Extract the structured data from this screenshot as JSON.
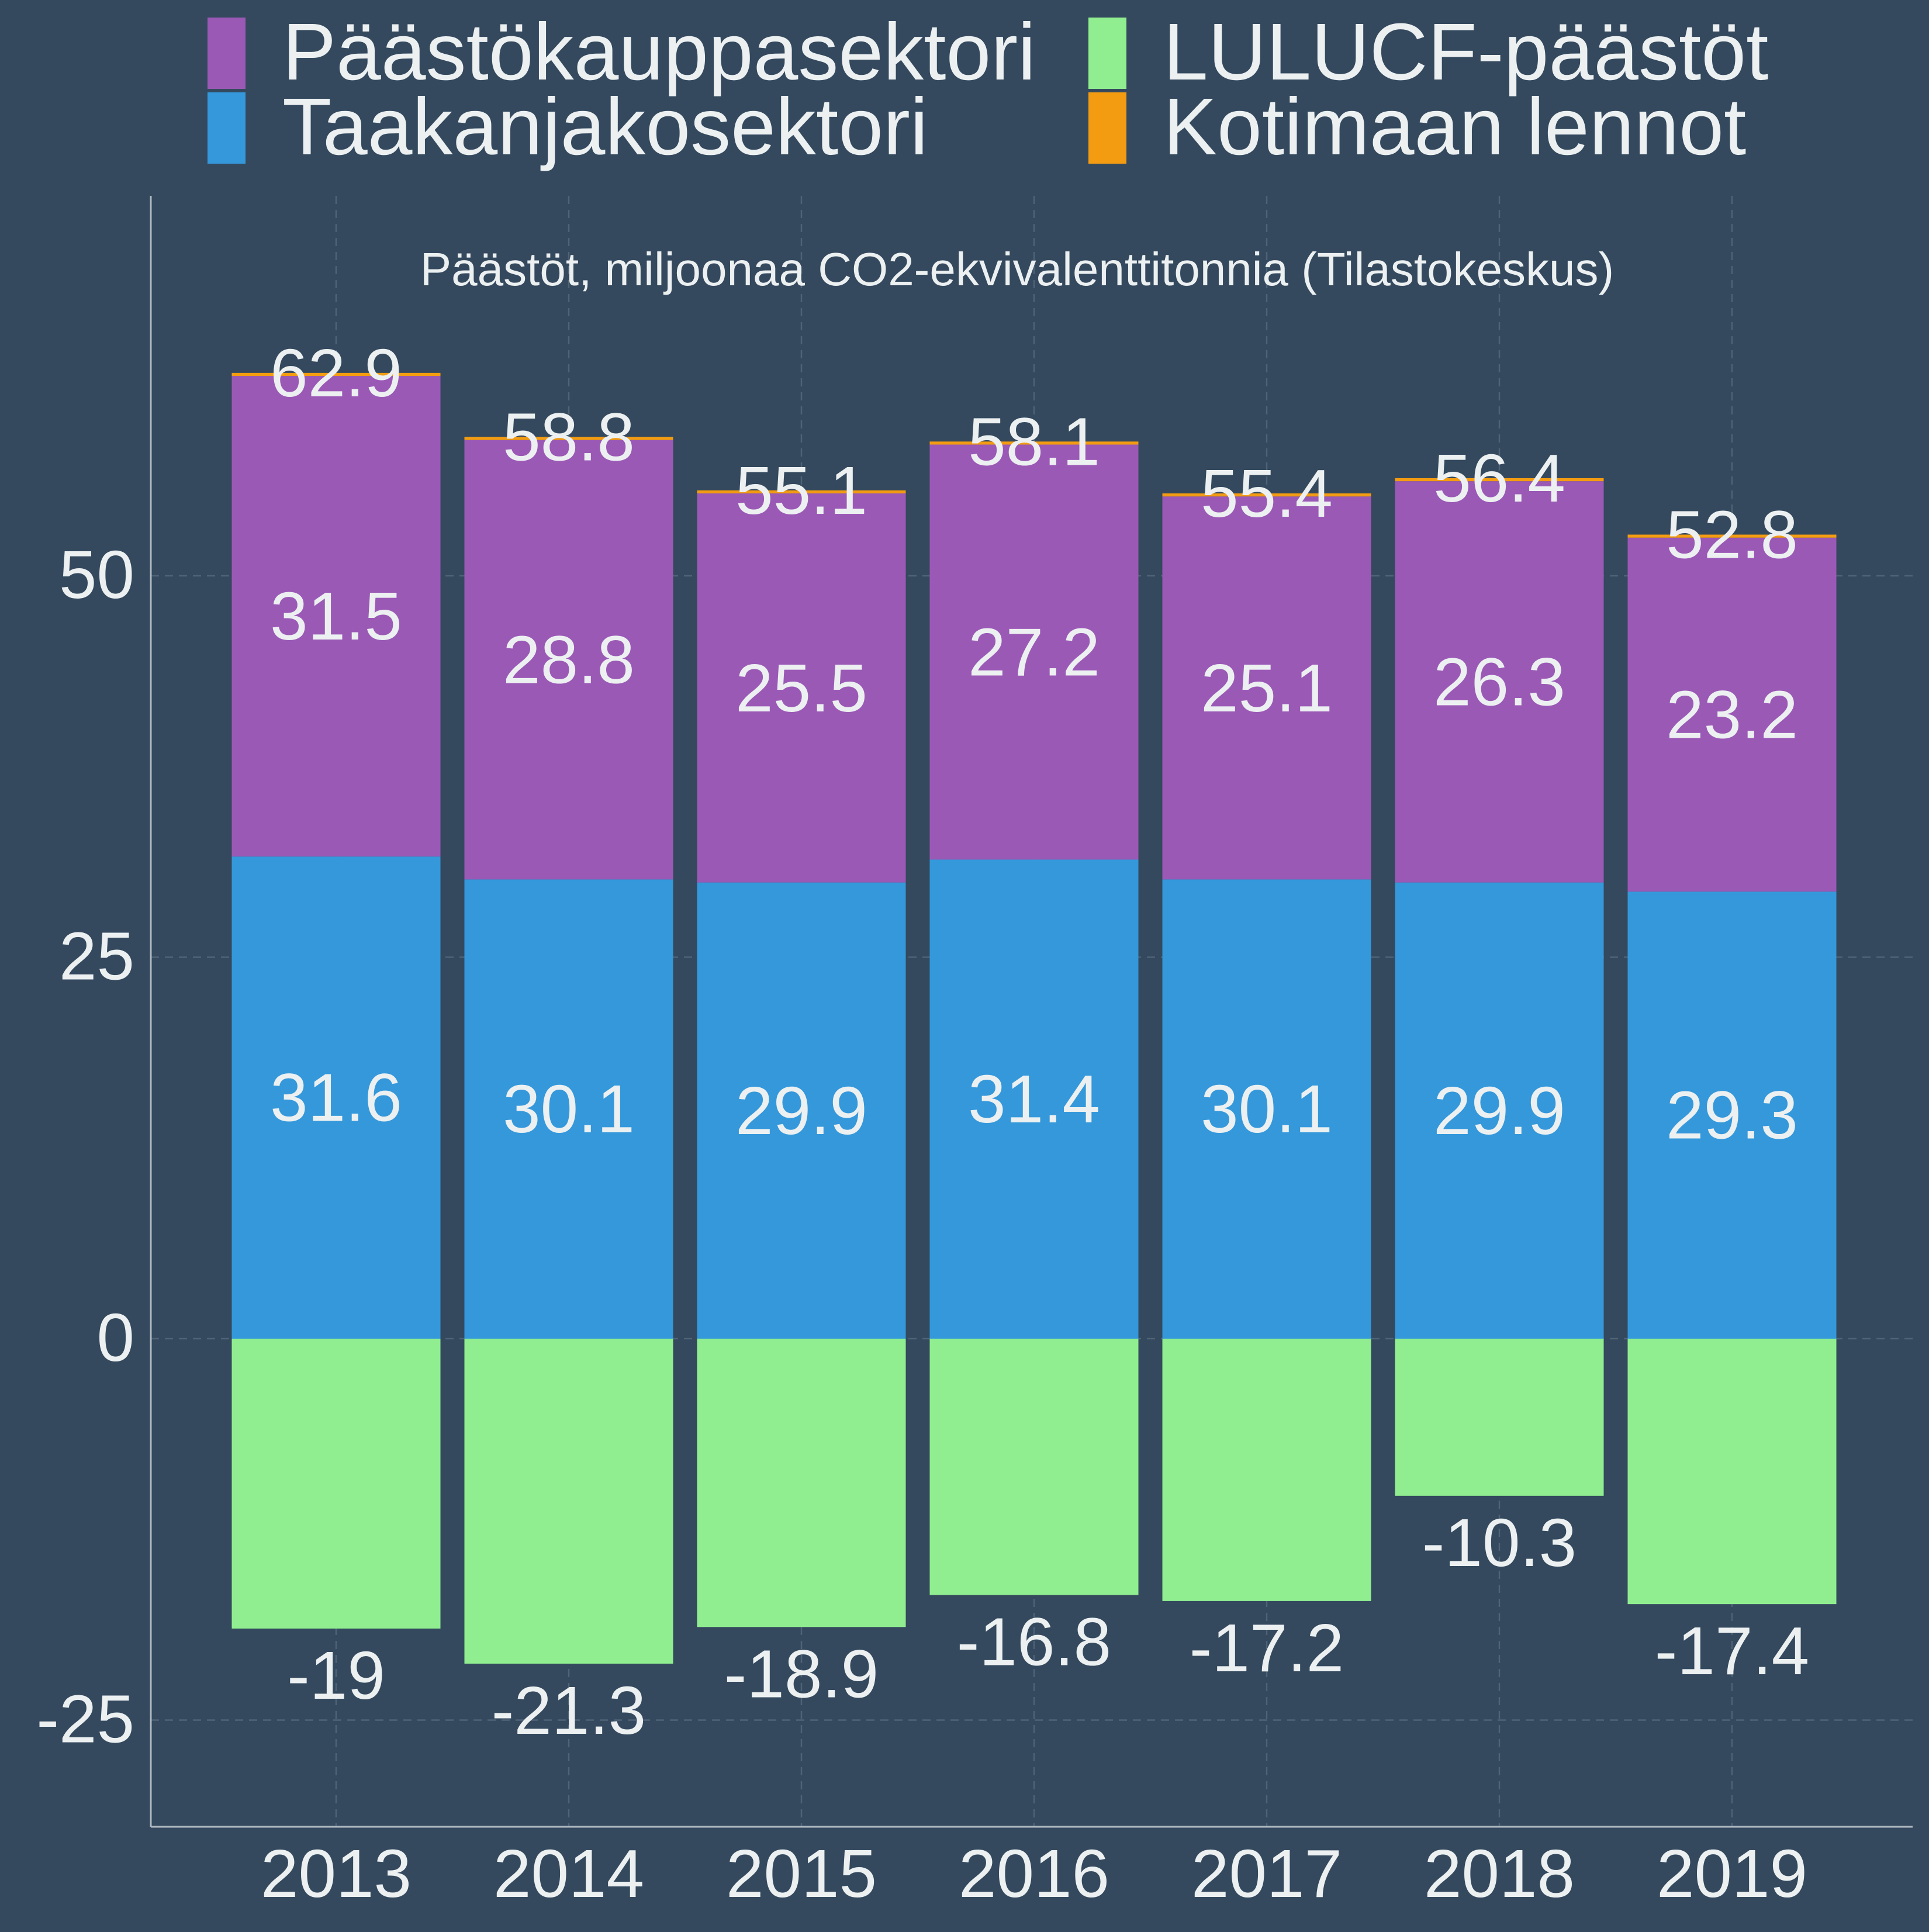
{
  "chart_data": {
    "type": "bar",
    "stacked": true,
    "title": "Päästöt, miljoonaa CO2-ekvivalenttitonnia (Tilastokeskus)",
    "xlabel": "",
    "ylabel": "",
    "categories": [
      "2013",
      "2014",
      "2015",
      "2016",
      "2017",
      "2018",
      "2019"
    ],
    "series": [
      {
        "name": "Päästökauppasektori",
        "color": "#9b59b6",
        "values": [
          31.5,
          28.8,
          25.5,
          27.2,
          25.1,
          26.3,
          23.2
        ],
        "labels": [
          "31.5",
          "28.8",
          "25.5",
          "27.2",
          "25.1",
          "26.3",
          "23.2"
        ]
      },
      {
        "name": "Taakanjakosektori",
        "color": "#3498db",
        "values": [
          31.6,
          30.1,
          29.9,
          31.4,
          30.1,
          29.9,
          29.3
        ],
        "labels": [
          "31.6",
          "30.1",
          "29.9",
          "31.4",
          "30.1",
          "29.9",
          "29.3"
        ]
      },
      {
        "name": "LULUCF-päästöt",
        "color": "#90ee90",
        "values": [
          -19,
          -21.3,
          -18.9,
          -16.8,
          -17.2,
          -10.3,
          -17.4
        ],
        "labels": [
          "-19",
          "-21.3",
          "-18.9",
          "-16.8",
          "-17.2",
          "-10.3",
          "-17.4"
        ]
      },
      {
        "name": "Kotimaan lennot",
        "color": "#f39c12",
        "values": [
          0.2,
          0.2,
          0.2,
          0.2,
          0.2,
          0.2,
          0.2
        ]
      }
    ],
    "totals": [
      "62.9",
      "58.8",
      "55.1",
      "58.1",
      "55.4",
      "56.4",
      "52.8"
    ],
    "yticks": [
      -25,
      0,
      25,
      50
    ],
    "ylim": [
      -32,
      75
    ],
    "grid": true,
    "legend_position": "top"
  }
}
